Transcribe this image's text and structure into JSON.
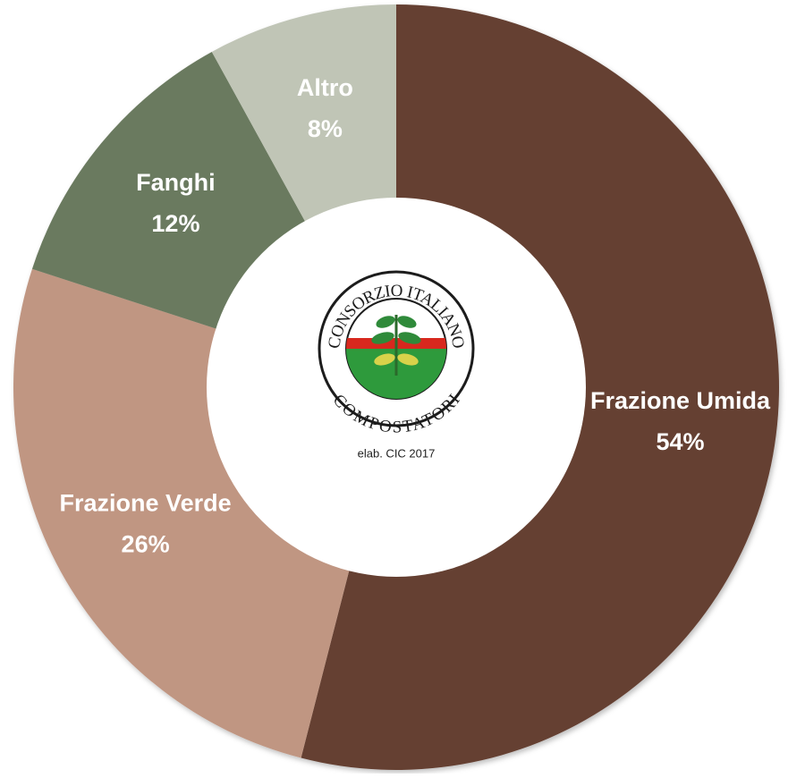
{
  "chart_data": {
    "type": "donut",
    "categories": [
      "Frazione Umida",
      "Frazione Verde",
      "Fanghi",
      "Altro"
    ],
    "values": [
      54,
      26,
      12,
      8
    ],
    "value_labels": [
      "54%",
      "26%",
      "12%",
      "8%"
    ],
    "colors": [
      "#654133",
      "#c09682",
      "#6b7a5f",
      "#c0c5b6"
    ],
    "logo": {
      "top": "CONSORZIO ITALIANO",
      "bottom": "COMPOSTATORI"
    },
    "note": "elab. CIC 2017"
  }
}
